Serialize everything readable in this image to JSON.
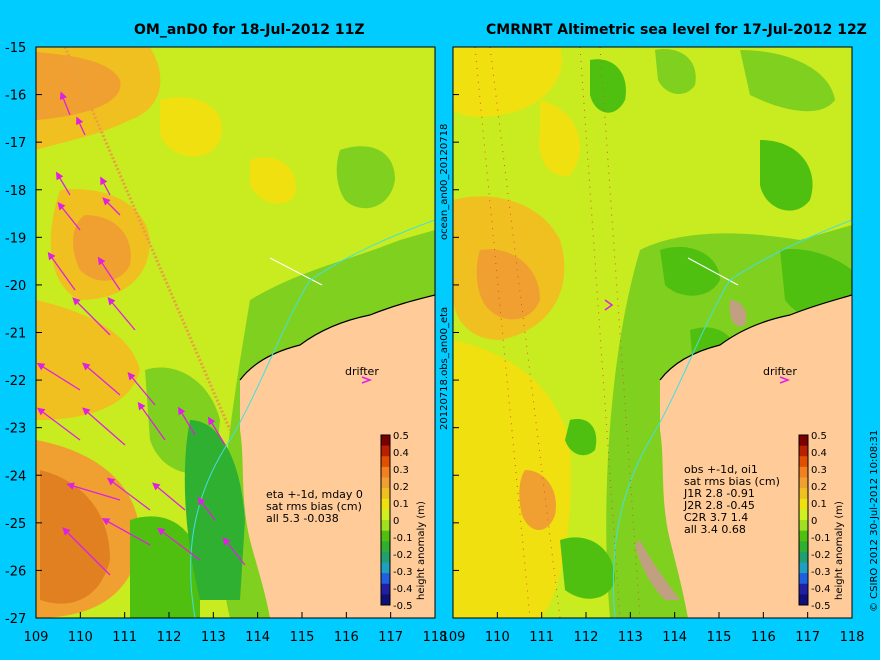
{
  "titles": {
    "left": "OM_anD0 for 18-Jul-2012 11Z",
    "right": "CMRNRT Altimetric sea level  for 17-Jul-2012 12Z"
  },
  "axes": {
    "y_ticks": [
      "-15",
      "-16",
      "-17",
      "-18",
      "-19",
      "-20",
      "-21",
      "-22",
      "-23",
      "-24",
      "-25",
      "-26",
      "-27"
    ],
    "x_ticks_left": [
      "109",
      "110",
      "111",
      "112",
      "113",
      "114",
      "115",
      "116",
      "117",
      "118"
    ],
    "x_ticks_right": [
      "109",
      "110",
      "111",
      "112",
      "113",
      "114",
      "115",
      "116",
      "117",
      "118"
    ],
    "lon_range": [
      109,
      118
    ],
    "lat_range": [
      -27,
      -15
    ]
  },
  "colorbar": {
    "label": "height anomaly (m)",
    "ticks": [
      "0.5",
      "0.4",
      "0.3",
      "0.2",
      "0.1",
      "0",
      "-0.1",
      "-0.2",
      "-0.3",
      "-0.4",
      "-0.5"
    ],
    "range": [
      -0.5,
      0.5
    ],
    "colors": [
      "#7a0000",
      "#b82000",
      "#e05000",
      "#f08020",
      "#f0a030",
      "#f0c020",
      "#f0e010",
      "#d0f020",
      "#a0e020",
      "#50c010",
      "#30b030",
      "#20a070",
      "#20a0c0",
      "#2060e0",
      "#2020a0",
      "#10107a"
    ]
  },
  "labels": {
    "drifter": "drifter",
    "vertical_left": "20120718.obs_an00_eta",
    "vertical_top": "ocean_an00_20120718",
    "credit": "© CSIRO 2012   30-Jul-2012 10:08:31"
  },
  "stats_left": [
    "eta +-1d, mday 0",
    "sat rms bias (cm)",
    "all 5.3 -0.038"
  ],
  "stats_right": [
    "obs +-1d, oi1",
    "sat rms bias (cm)",
    "J1R   2.8 -0.91",
    "J2R   2.8 -0.45",
    "C2R   3.7 1.4",
    "all 3.4 0.68"
  ],
  "colors": {
    "land": "#ffcc99",
    "background": "#00ccff",
    "arrows": "#e020e0",
    "cyan_line": "#40e0e0"
  }
}
